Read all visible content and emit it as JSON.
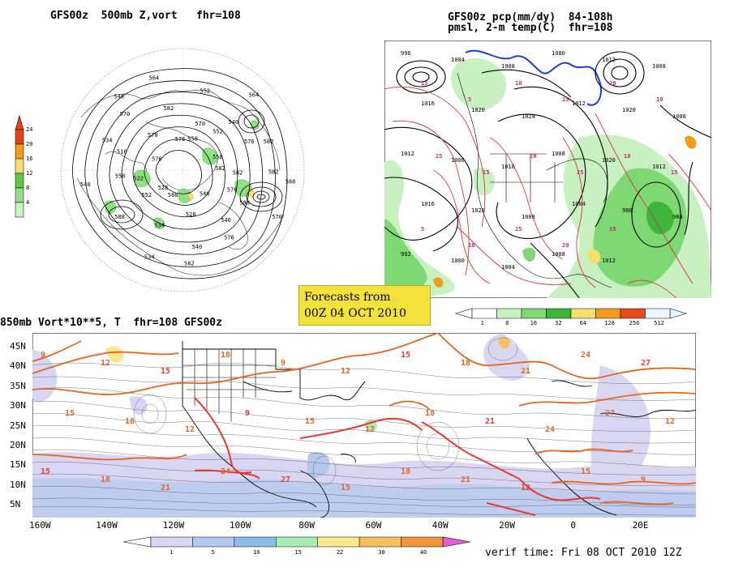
{
  "panel_polar": {
    "title": "GFS00z  500mb Z,vort   fhr=108",
    "colorbar": {
      "labels": [
        "24",
        "20",
        "16",
        "12",
        "8",
        "4"
      ],
      "colors": [
        "#e8401a",
        "#f29a1b",
        "#f7dd72",
        "#5bc84a",
        "#8fe083",
        "#c9f0c0"
      ]
    },
    "contour_labels": [
      "582",
      "576",
      "546",
      "540",
      "534",
      "528",
      "522",
      "516",
      "570",
      "564",
      "558",
      "552",
      "576",
      "582",
      "570",
      "546",
      "528",
      "534",
      "588",
      "540",
      "576",
      "570",
      "582",
      "552",
      "564",
      "558",
      "582",
      "588",
      "576",
      "582",
      "588",
      "552",
      "558",
      "534",
      "546",
      "576",
      "570",
      "540",
      "582",
      "588"
    ]
  },
  "panel_precip": {
    "title_line1": "GFS00z pcp(mm/dy)  84-108h",
    "title_line2": "pmsl, 2-m temp(C)  fhr=108",
    "colorbar": {
      "labels": [
        "1",
        "8",
        "16",
        "32",
        "64",
        "128",
        "256",
        "512"
      ],
      "colors": [
        "#ffffff",
        "#c8f0c0",
        "#7ed873",
        "#3bb53a",
        "#f4e06a",
        "#f29a1b",
        "#e84a1a",
        "#e8f6ff"
      ]
    },
    "isobar_labels": [
      "996",
      "1004",
      "1008",
      "1080",
      "1012",
      "1008",
      "1016",
      "1020",
      "1024",
      "1012",
      "1020",
      "1008",
      "1012",
      "1000",
      "1016",
      "1008",
      "1020",
      "1012",
      "1016",
      "1020",
      "1008",
      "1004",
      "988",
      "984",
      "992",
      "1000",
      "1004",
      "1008",
      "1012"
    ],
    "temp_labels": [
      "15",
      "5",
      "10",
      "15",
      "20",
      "10",
      "25",
      "15",
      "20",
      "25",
      "10",
      "15",
      "5",
      "10",
      "25",
      "20",
      "15"
    ]
  },
  "info_box": {
    "line1": "Forecasts from",
    "line2": "00Z 04 OCT 2010"
  },
  "panel_850": {
    "title": "850mb Vort*10**5, T  fhr=108 GFS00z",
    "lat_labels": [
      "45N",
      "40N",
      "35N",
      "30N",
      "25N",
      "20N",
      "15N",
      "10N",
      "5N"
    ],
    "lon_labels": [
      "160W",
      "140W",
      "120W",
      "100W",
      "80W",
      "60W",
      "40W",
      "20W",
      "0",
      "20E"
    ],
    "colorbar": {
      "labels": [
        "1",
        "5",
        "10",
        "15",
        "22",
        "30",
        "40"
      ],
      "colors": [
        "#d8d6f2",
        "#b4c8ee",
        "#8fbce4",
        "#a8ecb2",
        "#fbe78c",
        "#f6c05c",
        "#f39438"
      ]
    },
    "temp_labels": [
      "9",
      "12",
      "15",
      "18",
      "9",
      "12",
      "15",
      "18",
      "21",
      "24",
      "27",
      "15",
      "18",
      "12",
      "9",
      "15",
      "12",
      "18",
      "21",
      "24",
      "27",
      "12",
      "15",
      "18",
      "21",
      "24",
      "27",
      "15",
      "18",
      "21",
      "12",
      "15",
      "9"
    ],
    "verif_time": "verif time: Fri 08 OCT 2010 12Z"
  }
}
